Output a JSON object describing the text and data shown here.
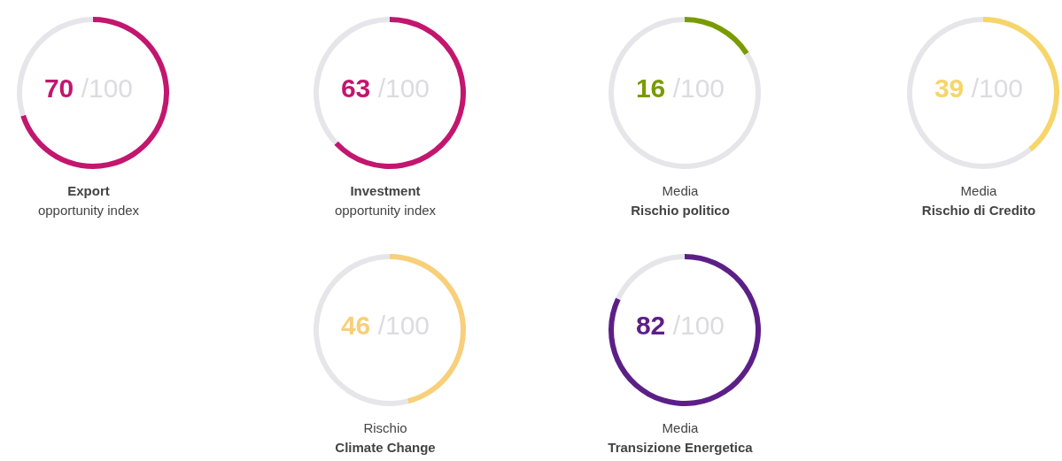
{
  "chart_data": [
    {
      "type": "donut",
      "title": "Export",
      "subtitle": "opportunity index",
      "categories": [
        null,
        null
      ],
      "values": [
        70,
        30
      ],
      "colors": [
        "#c2166f",
        "#e6e6ea"
      ],
      "annotations": [
        "70",
        "/100"
      ]
    },
    {
      "type": "donut",
      "title": "Investment",
      "subtitle": "opportunity index",
      "categories": [
        null,
        null
      ],
      "values": [
        63,
        37
      ],
      "colors": [
        "#c2166f",
        "#e6e6ea"
      ],
      "annotations": [
        "63",
        "/100"
      ]
    },
    {
      "type": "donut",
      "subtitle": "Media",
      "title": "Rischio politico",
      "categories": [
        null,
        null
      ],
      "values": [
        16,
        84
      ],
      "colors": [
        "#7a9a01",
        "#e6e6ea"
      ],
      "annotations": [
        "16",
        "/100"
      ]
    },
    {
      "type": "donut",
      "subtitle": "Media",
      "title": "Rischio di Credito",
      "categories": [
        null,
        null
      ],
      "values": [
        39,
        61
      ],
      "colors": [
        "#f6d56a",
        "#e6e6ea"
      ],
      "annotations": [
        "39",
        "/100"
      ]
    },
    {
      "type": "donut",
      "subtitle": "Rischio",
      "title": "Climate Change",
      "categories": [
        null,
        null
      ],
      "values": [
        46,
        54
      ],
      "colors": [
        "#f8cf7a",
        "#e6e6ea"
      ],
      "annotations": [
        "46",
        "/100"
      ]
    },
    {
      "type": "donut",
      "subtitle": "Media",
      "title": "Transizione Energetica",
      "categories": [
        null,
        null
      ],
      "values": [
        82,
        18
      ],
      "colors": [
        "#5c1f87",
        "#e6e6ea"
      ],
      "annotations": [
        "82",
        "/100"
      ]
    }
  ]
}
